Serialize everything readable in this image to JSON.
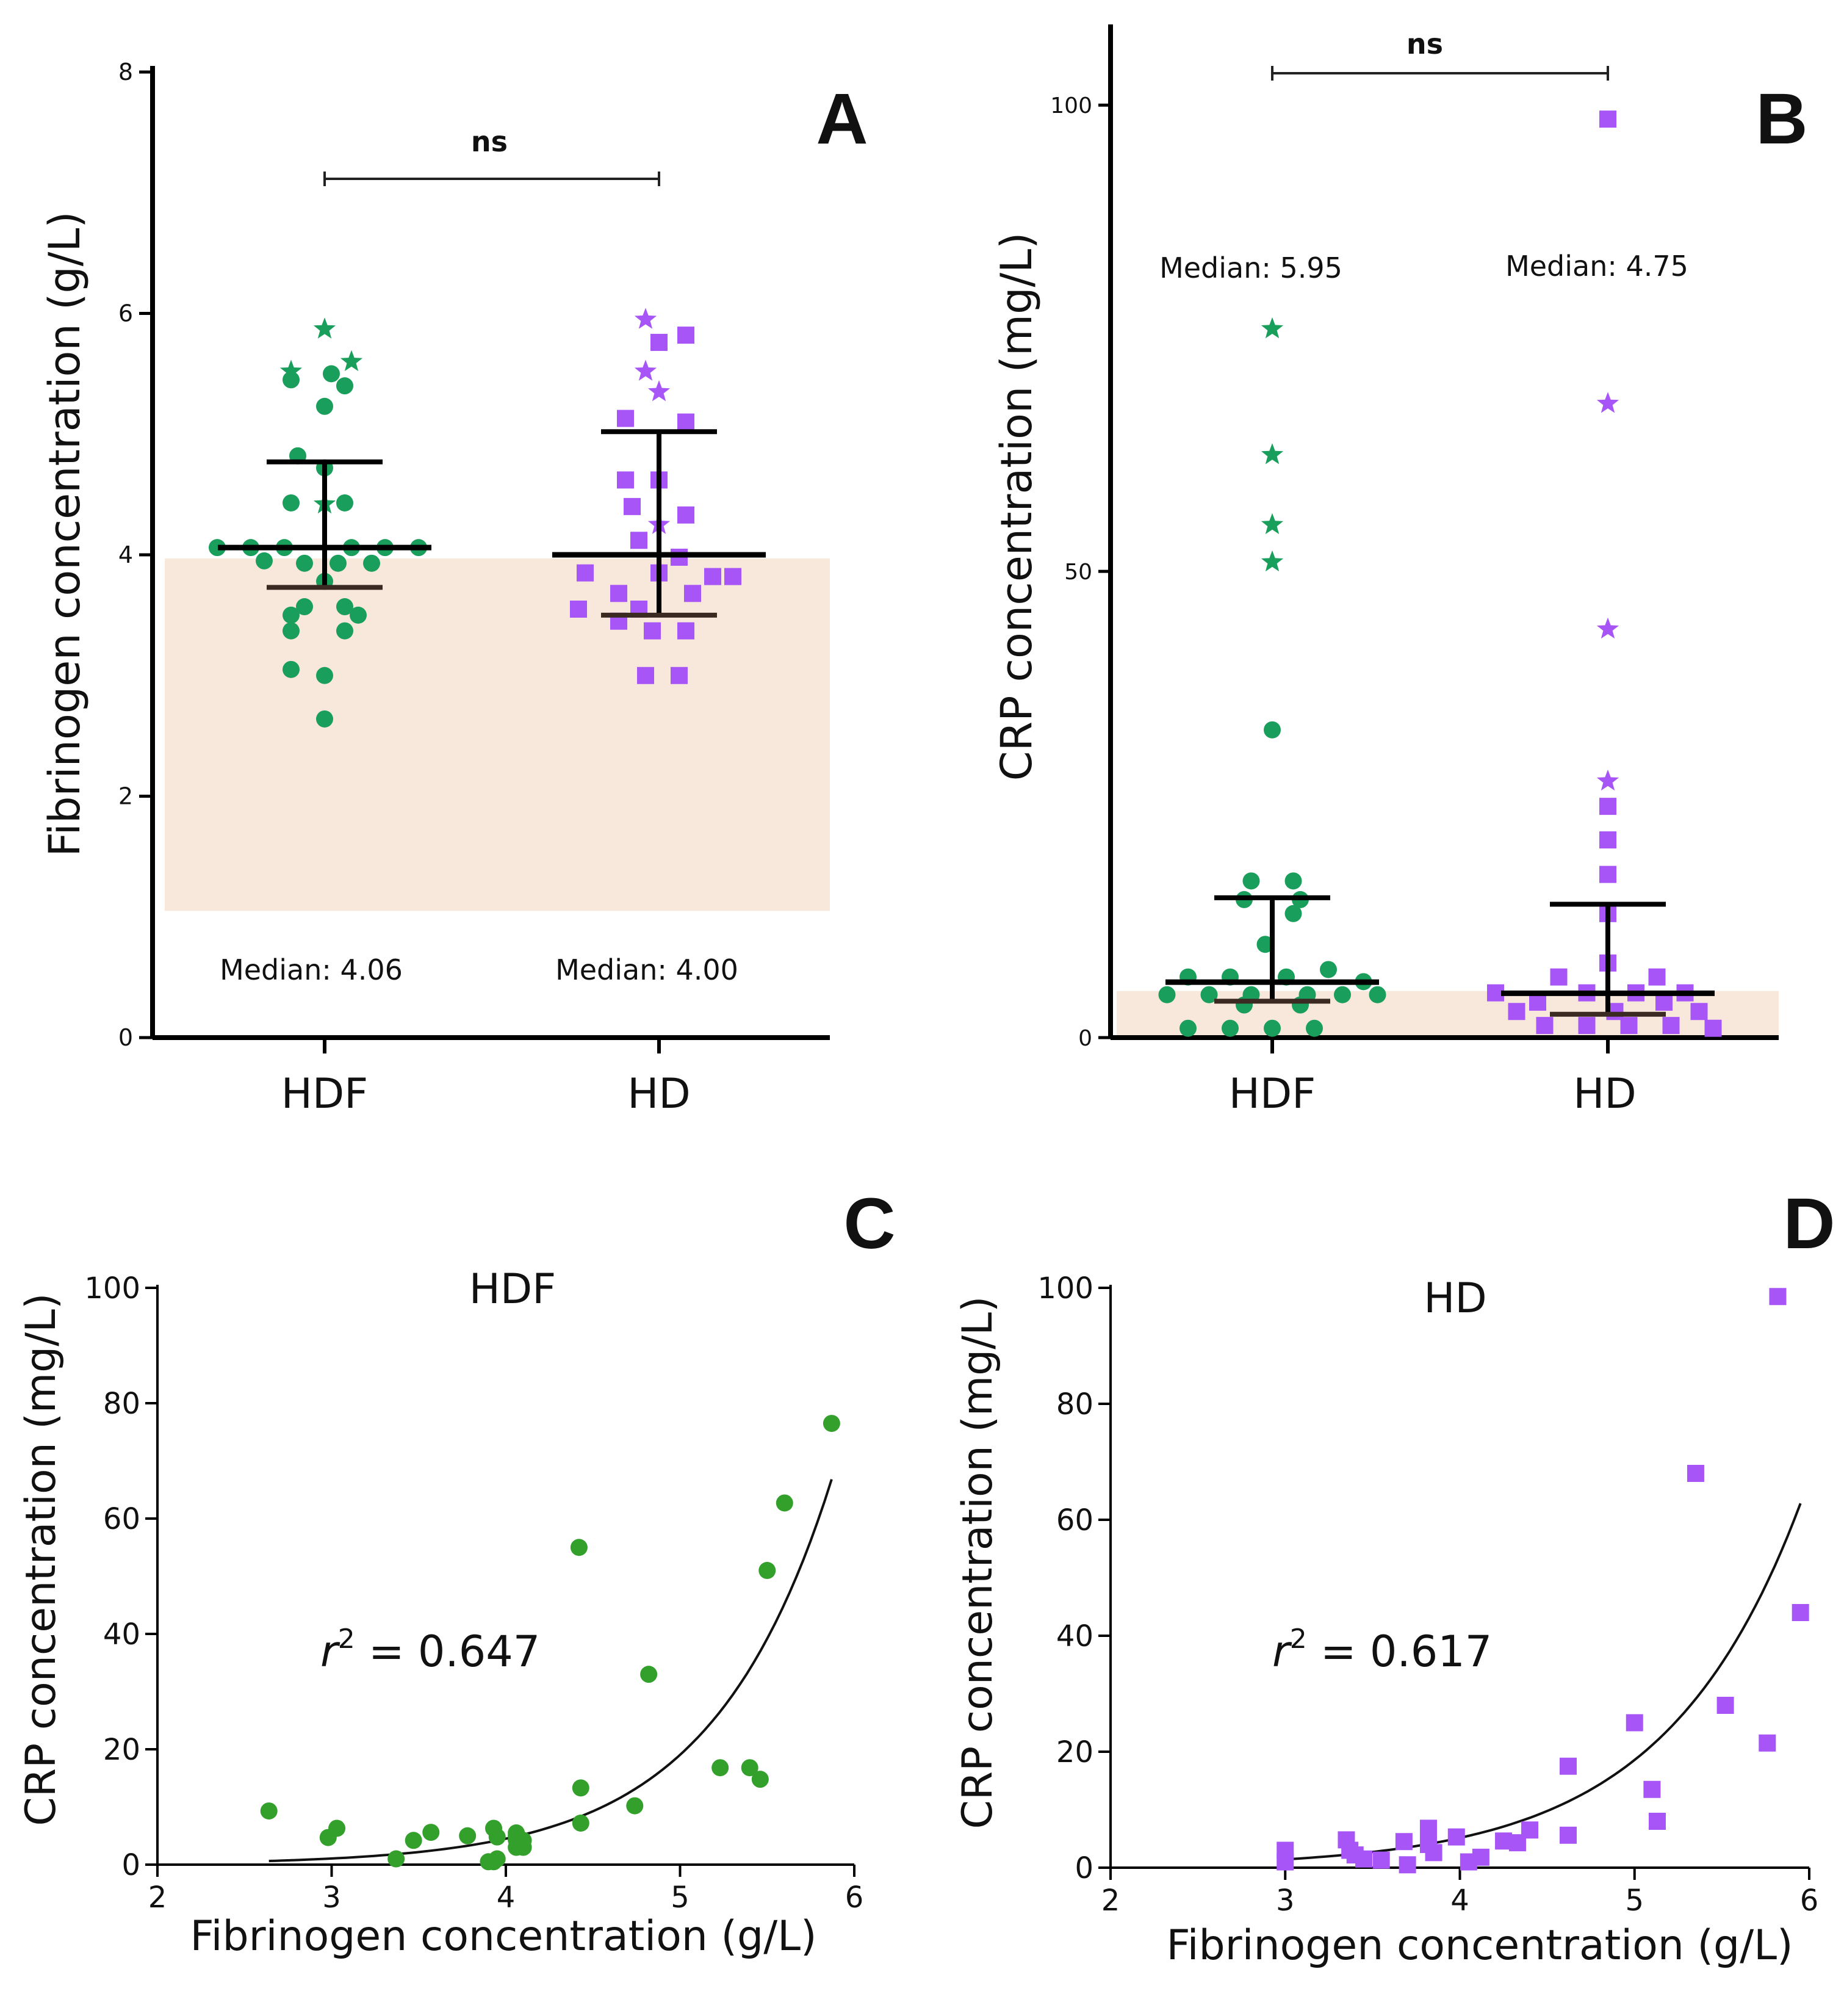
{
  "colors": {
    "hdf": "#1a9e5c",
    "hdf_scatter": "#33a02c",
    "hd": "#a855f7",
    "reference_band": "#f8e8dc",
    "axis": "#000000"
  },
  "chart_data": [
    {
      "panel": "A",
      "type": "scatter",
      "subtype": "dot-strip",
      "ylabel": "Fibrinogen concentration (g/L)",
      "ylim": [
        0,
        8
      ],
      "yticks": [
        "0",
        "2",
        "4",
        "6",
        "8"
      ],
      "categories": [
        "HDF",
        "HD"
      ],
      "significance": "ns",
      "reference_range": [
        1.05,
        3.97
      ],
      "groups": [
        {
          "name": "HDF",
          "median_label": "Median: 4.06",
          "median": 4.06,
          "iqr": [
            3.73,
            4.77
          ],
          "circles": [
            {
              "y": 5.45,
              "dx": -0.25
            },
            {
              "y": 5.5,
              "dx": 0.05
            },
            {
              "y": 5.4,
              "dx": 0.15
            },
            {
              "y": 5.23,
              "dx": 0.0
            },
            {
              "y": 4.82,
              "dx": -0.2
            },
            {
              "y": 4.72,
              "dx": 0.0
            },
            {
              "y": 4.43,
              "dx": -0.25
            },
            {
              "y": 4.43,
              "dx": 0.15
            },
            {
              "y": 4.06,
              "dx": -0.8
            },
            {
              "y": 4.06,
              "dx": -0.55
            },
            {
              "y": 4.06,
              "dx": -0.3
            },
            {
              "y": 4.06,
              "dx": 0.2
            },
            {
              "y": 4.06,
              "dx": 0.45
            },
            {
              "y": 4.06,
              "dx": 0.7
            },
            {
              "y": 3.95,
              "dx": -0.45
            },
            {
              "y": 3.93,
              "dx": -0.15
            },
            {
              "y": 3.93,
              "dx": 0.1
            },
            {
              "y": 3.93,
              "dx": 0.35
            },
            {
              "y": 3.78,
              "dx": 0.0
            },
            {
              "y": 3.57,
              "dx": -0.15
            },
            {
              "y": 3.57,
              "dx": 0.15
            },
            {
              "y": 3.5,
              "dx": -0.25
            },
            {
              "y": 3.5,
              "dx": 0.25
            },
            {
              "y": 3.37,
              "dx": -0.25
            },
            {
              "y": 3.37,
              "dx": 0.15
            },
            {
              "y": 3.05,
              "dx": -0.25
            },
            {
              "y": 3.0,
              "dx": 0.0
            },
            {
              "y": 2.64,
              "dx": 0.0
            }
          ],
          "stars": [
            {
              "y": 5.87,
              "dx": 0.0
            },
            {
              "y": 5.52,
              "dx": -0.25
            },
            {
              "y": 5.6,
              "dx": 0.2
            },
            {
              "y": 4.42,
              "dx": 0.0
            }
          ]
        },
        {
          "name": "HD",
          "median_label": "Median: 4.00",
          "median": 4.0,
          "iqr": [
            3.5,
            5.02
          ],
          "squares": [
            {
              "y": 5.82,
              "dx": 0.2
            },
            {
              "y": 5.76,
              "dx": 0.0
            },
            {
              "y": 5.13,
              "dx": -0.25
            },
            {
              "y": 5.1,
              "dx": 0.2
            },
            {
              "y": 4.62,
              "dx": -0.25
            },
            {
              "y": 4.62,
              "dx": 0.0
            },
            {
              "y": 4.4,
              "dx": -0.2
            },
            {
              "y": 4.33,
              "dx": 0.2
            },
            {
              "y": 4.12,
              "dx": -0.15
            },
            {
              "y": 3.98,
              "dx": 0.15
            },
            {
              "y": 3.85,
              "dx": -0.55
            },
            {
              "y": 3.85,
              "dx": 0.0
            },
            {
              "y": 3.82,
              "dx": 0.4
            },
            {
              "y": 3.82,
              "dx": 0.55
            },
            {
              "y": 3.68,
              "dx": -0.3
            },
            {
              "y": 3.68,
              "dx": 0.25
            },
            {
              "y": 3.55,
              "dx": -0.6
            },
            {
              "y": 3.55,
              "dx": -0.15
            },
            {
              "y": 3.45,
              "dx": -0.3
            },
            {
              "y": 3.37,
              "dx": -0.05
            },
            {
              "y": 3.37,
              "dx": 0.2
            },
            {
              "y": 3.0,
              "dx": -0.1
            },
            {
              "y": 3.0,
              "dx": 0.15
            }
          ],
          "stars": [
            {
              "y": 5.95,
              "dx": -0.1
            },
            {
              "y": 5.52,
              "dx": -0.1
            },
            {
              "y": 5.35,
              "dx": 0.0
            },
            {
              "y": 4.25,
              "dx": 0.0
            }
          ]
        }
      ]
    },
    {
      "panel": "B",
      "type": "scatter",
      "subtype": "dot-strip",
      "ylabel": "CRP concentration (mg/L)",
      "ylim": [
        0,
        108
      ],
      "yticks": [
        "0",
        "50",
        "100"
      ],
      "categories": [
        "HDF",
        "HD"
      ],
      "significance": "ns",
      "reference_range": [
        0,
        5
      ],
      "groups": [
        {
          "name": "HDF",
          "median_label": "Median: 5.95",
          "median": 5.95,
          "iqr": [
            3.9,
            15.0
          ],
          "circles": [
            {
              "y": 33.0,
              "dx": 0.0
            },
            {
              "y": 16.8,
              "dx": -0.15
            },
            {
              "y": 16.8,
              "dx": 0.15
            },
            {
              "y": 14.8,
              "dx": 0.2
            },
            {
              "y": 14.8,
              "dx": -0.2
            },
            {
              "y": 13.3,
              "dx": 0.15
            },
            {
              "y": 10.0,
              "dx": -0.05
            },
            {
              "y": 7.3,
              "dx": 0.4
            },
            {
              "y": 6.5,
              "dx": -0.6
            },
            {
              "y": 6.5,
              "dx": -0.3
            },
            {
              "y": 6.5,
              "dx": 0.1
            },
            {
              "y": 6.0,
              "dx": 0.65
            },
            {
              "y": 4.6,
              "dx": -0.75
            },
            {
              "y": 4.6,
              "dx": -0.45
            },
            {
              "y": 4.6,
              "dx": -0.15
            },
            {
              "y": 4.6,
              "dx": 0.25
            },
            {
              "y": 4.6,
              "dx": 0.5
            },
            {
              "y": 4.6,
              "dx": 0.75
            },
            {
              "y": 3.5,
              "dx": -0.2
            },
            {
              "y": 3.5,
              "dx": 0.2
            },
            {
              "y": 1.0,
              "dx": -0.6
            },
            {
              "y": 1.0,
              "dx": -0.3
            },
            {
              "y": 1.0,
              "dx": 0.0
            },
            {
              "y": 1.0,
              "dx": 0.3
            }
          ],
          "stars": [
            {
              "y": 76.0,
              "dx": 0.0
            },
            {
              "y": 62.5,
              "dx": 0.0
            },
            {
              "y": 55.0,
              "dx": 0.0
            },
            {
              "y": 51.0,
              "dx": 0.0
            }
          ]
        },
        {
          "name": "HD",
          "median_label": "Median: 4.75",
          "median": 4.75,
          "iqr": [
            2.5,
            14.3
          ],
          "squares": [
            {
              "y": 98.5,
              "dx": 0.0
            },
            {
              "y": 24.8,
              "dx": 0.0
            },
            {
              "y": 21.2,
              "dx": 0.0
            },
            {
              "y": 17.5,
              "dx": 0.0
            },
            {
              "y": 13.3,
              "dx": 0.0
            },
            {
              "y": 8.0,
              "dx": 0.0
            },
            {
              "y": 6.5,
              "dx": -0.35
            },
            {
              "y": 6.5,
              "dx": 0.35
            },
            {
              "y": 4.8,
              "dx": -0.8
            },
            {
              "y": 4.8,
              "dx": -0.15
            },
            {
              "y": 4.8,
              "dx": 0.2
            },
            {
              "y": 4.8,
              "dx": 0.55
            },
            {
              "y": 3.8,
              "dx": -0.5
            },
            {
              "y": 3.8,
              "dx": 0.4
            },
            {
              "y": 2.8,
              "dx": -0.65
            },
            {
              "y": 2.8,
              "dx": 0.05
            },
            {
              "y": 2.8,
              "dx": 0.65
            },
            {
              "y": 1.3,
              "dx": -0.45
            },
            {
              "y": 1.3,
              "dx": -0.15
            },
            {
              "y": 1.3,
              "dx": 0.15
            },
            {
              "y": 1.3,
              "dx": 0.45
            },
            {
              "y": 1.0,
              "dx": 0.75
            }
          ],
          "stars": [
            {
              "y": 68.0,
              "dx": 0.0
            },
            {
              "y": 43.8,
              "dx": 0.0
            },
            {
              "y": 27.5,
              "dx": 0.0
            }
          ]
        }
      ]
    },
    {
      "panel": "C",
      "type": "scatter",
      "title": "HDF",
      "xlabel": "Fibrinogen concentration (g/L)",
      "ylabel": "CRP concentration (mg/L)",
      "xlim": [
        2,
        6
      ],
      "ylim": [
        0,
        100
      ],
      "xticks": [
        "2",
        "3",
        "4",
        "5",
        "6"
      ],
      "yticks": [
        "0",
        "20",
        "40",
        "60",
        "80",
        "100"
      ],
      "r2_label": "r",
      "r2_sup": "2",
      "r2_value": " = 0.647",
      "fit": {
        "type": "exponential",
        "a": 0.014,
        "b": 1.443,
        "x_range": [
          2.64,
          5.87
        ]
      },
      "x": [
        2.64,
        2.98,
        3.03,
        3.37,
        3.47,
        3.57,
        3.78,
        3.93,
        3.93,
        3.95,
        4.06,
        4.06,
        4.06,
        4.06,
        4.1,
        4.1,
        3.9,
        3.95,
        4.42,
        4.43,
        4.43,
        4.74,
        4.82,
        5.23,
        5.4,
        5.46,
        5.5,
        5.6,
        5.87
      ],
      "y": [
        9.3,
        4.7,
        6.3,
        1.0,
        4.2,
        5.6,
        5.0,
        0.5,
        6.3,
        4.8,
        5.5,
        5.0,
        4.3,
        3.0,
        4.2,
        3.0,
        0.5,
        1.0,
        55.0,
        13.3,
        7.2,
        10.2,
        33.0,
        16.8,
        16.8,
        14.8,
        51.0,
        62.7,
        76.5
      ]
    },
    {
      "panel": "D",
      "type": "scatter",
      "title": "HD",
      "xlabel": "Fibrinogen concentration (g/L)",
      "ylabel": "CRP concentration (mg/L)",
      "xlim": [
        2,
        6
      ],
      "ylim": [
        0,
        100
      ],
      "xticks": [
        "2",
        "3",
        "4",
        "5",
        "6"
      ],
      "yticks": [
        "0",
        "20",
        "40",
        "60",
        "80",
        "100"
      ],
      "r2_label": "r",
      "r2_sup": "2",
      "r2_value": " = 0.617",
      "fit": {
        "type": "exponential",
        "a": 0.0304,
        "b": 1.283,
        "x_range": [
          3.0,
          5.95
        ]
      },
      "x": [
        3.0,
        3.0,
        3.35,
        3.37,
        3.4,
        3.45,
        3.55,
        3.68,
        3.7,
        3.82,
        3.82,
        3.85,
        3.98,
        4.05,
        4.12,
        4.25,
        4.33,
        4.4,
        4.62,
        4.62,
        5.0,
        5.1,
        5.13,
        5.35,
        5.52,
        5.76,
        5.82,
        5.95
      ],
      "y": [
        3.0,
        1.0,
        4.8,
        3.0,
        2.2,
        1.5,
        1.3,
        4.5,
        0.5,
        6.8,
        4.0,
        2.6,
        5.3,
        1.0,
        1.8,
        4.6,
        4.3,
        6.5,
        5.6,
        17.5,
        25.0,
        13.5,
        8.0,
        68.0,
        28.0,
        21.5,
        98.5,
        44.0
      ]
    }
  ]
}
